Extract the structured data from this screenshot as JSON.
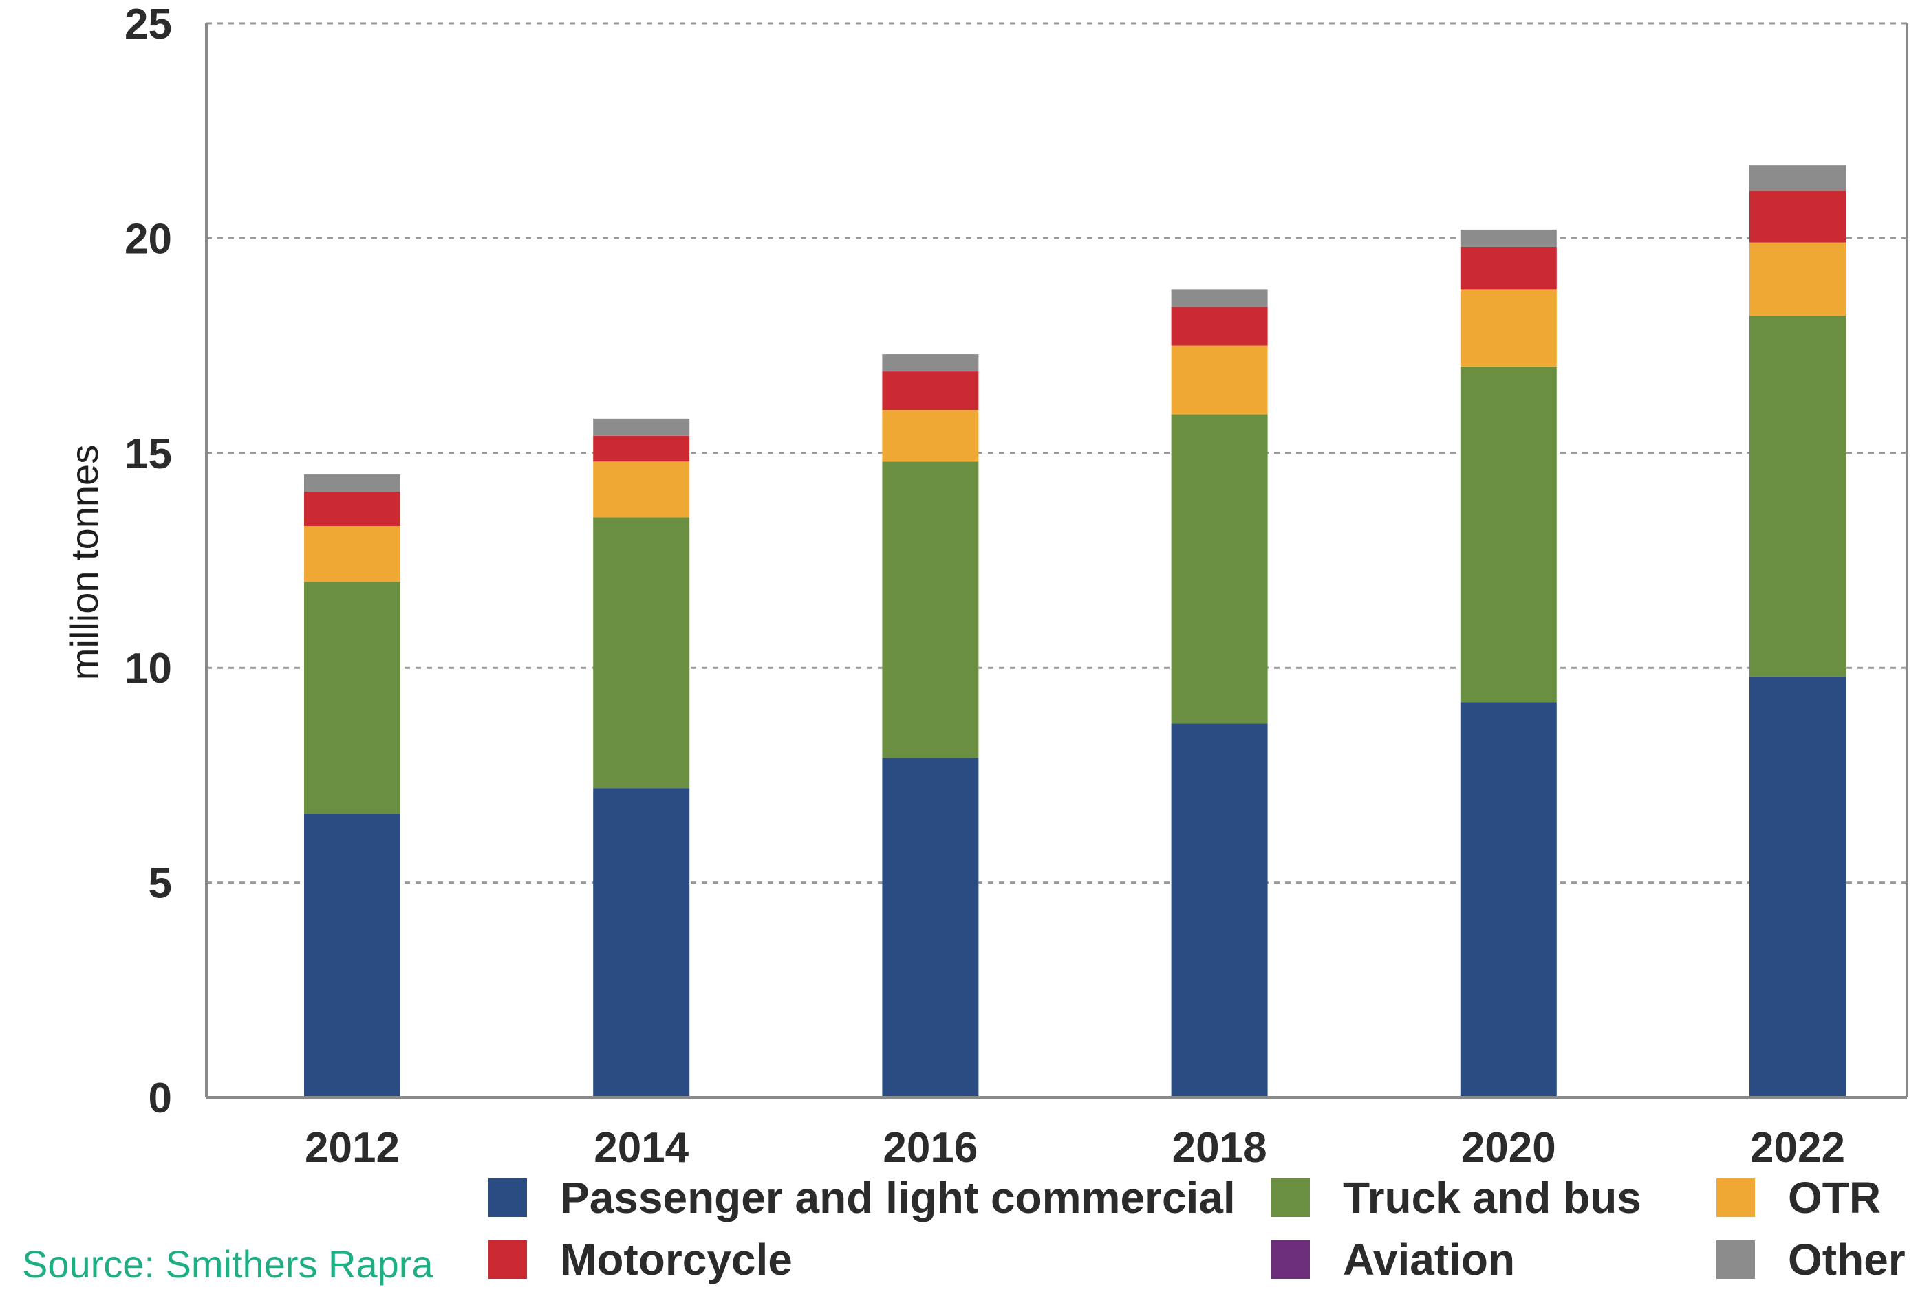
{
  "chart_data": {
    "type": "bar",
    "stacked": true,
    "title": "",
    "xlabel": "",
    "ylabel": "million tonnes",
    "ylim": [
      0,
      25
    ],
    "yticks": [
      0,
      5,
      10,
      15,
      20,
      25
    ],
    "grid": true,
    "legend_position": "bottom",
    "categories": [
      "2012",
      "2014",
      "2016",
      "2018",
      "2020",
      "2022"
    ],
    "series": [
      {
        "name": "Passenger and light commercial",
        "color": "#2b4c82",
        "values": [
          6.6,
          7.2,
          7.9,
          8.7,
          9.2,
          9.8
        ]
      },
      {
        "name": "Truck and bus",
        "color": "#6a8f40",
        "values": [
          5.4,
          6.3,
          6.9,
          7.2,
          7.8,
          8.4
        ]
      },
      {
        "name": "OTR",
        "color": "#f0a835",
        "values": [
          1.3,
          1.3,
          1.2,
          1.6,
          1.8,
          1.7
        ]
      },
      {
        "name": "Motorcycle",
        "color": "#cc2a33",
        "values": [
          0.8,
          0.6,
          0.9,
          0.9,
          1.0,
          1.2
        ]
      },
      {
        "name": "Aviation",
        "color": "#6e2f7a",
        "values": [
          0.0,
          0.0,
          0.0,
          0.0,
          0.0,
          0.0
        ]
      },
      {
        "name": "Other",
        "color": "#8c8c8c",
        "values": [
          0.4,
          0.4,
          0.4,
          0.4,
          0.4,
          0.6
        ]
      }
    ],
    "source": "Source: Smithers Rapra"
  }
}
